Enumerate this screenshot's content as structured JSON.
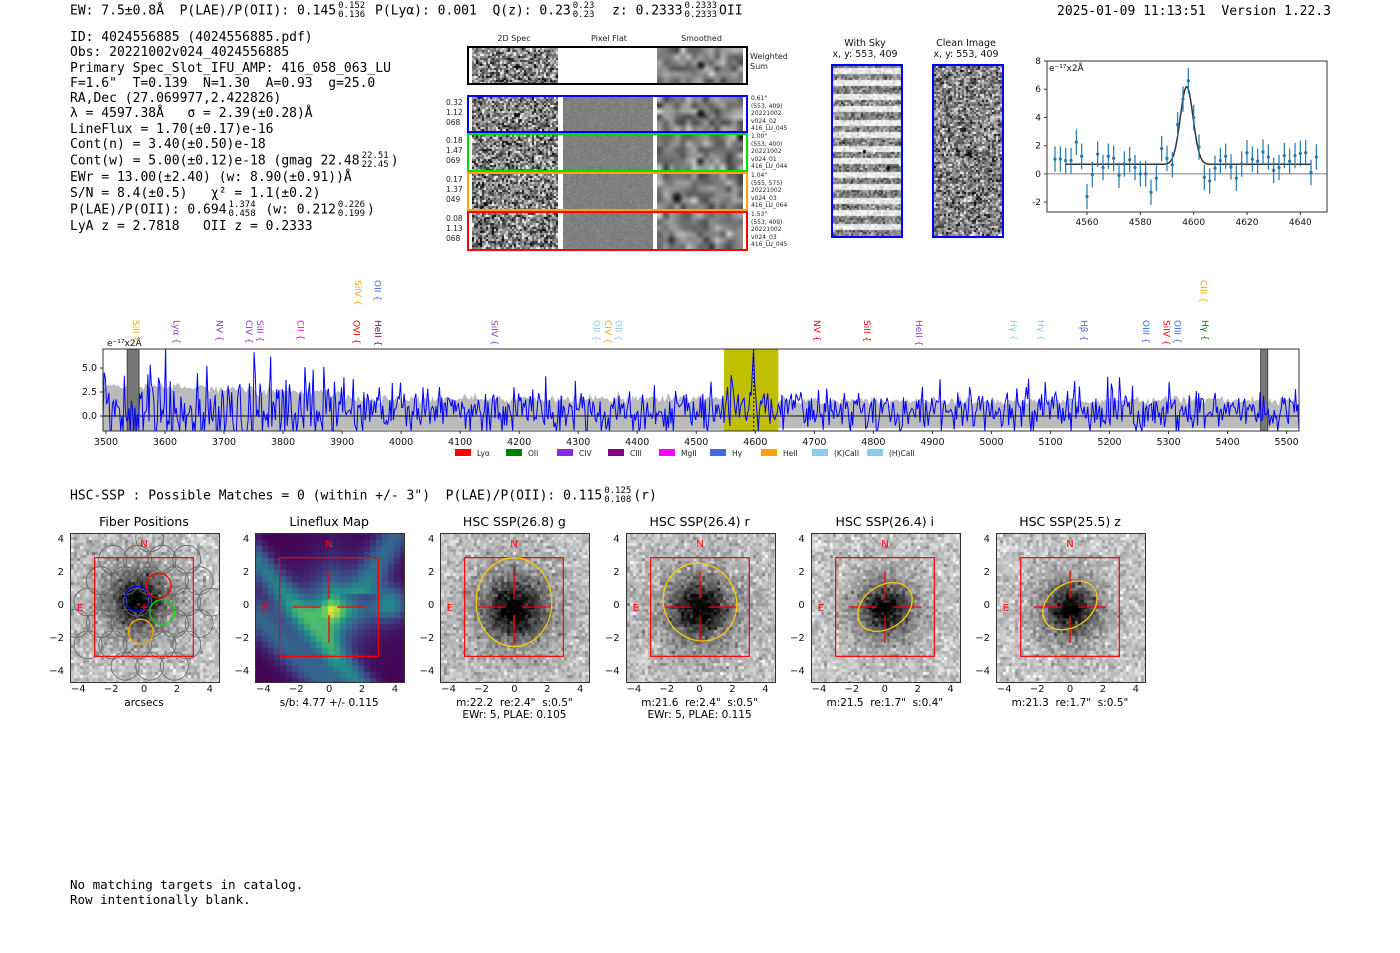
{
  "header": {
    "ew": "EW: 7.5±0.8Å",
    "plae_label": "P(LAE)/P(OII):",
    "plae": "0.145",
    "plae_hi": "0.152",
    "plae_lo": "0.136",
    "plya": "P(Lyα): 0.001",
    "qz_label": "Q(z):",
    "qz": "0.23",
    "qz_hi": "0.23",
    "qz_lo": "0.23",
    "z_label": "z:",
    "z": "0.2333",
    "z_hi": "0.2333",
    "z_lo": "0.2333",
    "z_line": "OII",
    "timestamp": "2025-01-09 11:13:51",
    "version": "Version 1.22.3"
  },
  "info": {
    "id": "ID: 4024556885 (4024556885.pdf)",
    "obs": "Obs: 20221002v024_4024556885",
    "primary": "Primary Spec_Slot_IFU_AMP: 416_058_063_LU",
    "params": "F=1.6\"  T=0.139  N=1.30  A=0.93  g=25.0",
    "radec": "RA,Dec (27.069977,2.422826)",
    "lambda": "λ = 4597.38Å   σ = 2.39(±0.28)Å",
    "lineflux": "LineFlux = 1.70(±0.17)e-16",
    "cont_n": "Cont(n) = 3.40(±0.50)e-18",
    "cont_w": "Cont(w) = 5.00(±0.12)e-18 (gmag 22.48",
    "gmag_hi": "22.51",
    "gmag_lo": "22.45",
    "cont_w_end": ")",
    "ewr": "EWr = 13.00(±2.40) (w: 8.90(±0.91))Å",
    "sn": "S/N = 8.4(±0.5)   χ² = 1.1(±0.2)",
    "plae": "P(LAE)/P(OII): 0.694",
    "plae_hi": "1.374",
    "plae_lo": "0.458",
    "plae_w": "(w: 0.212",
    "plae_w_hi": "0.226",
    "plae_w_lo": "0.199",
    "plae_w_end": ")",
    "z": "LyA z = 2.7818   OII z = 0.2333"
  },
  "spec2d": {
    "col_titles": [
      "2D Spec",
      "Pixel Flat",
      "Smoothed"
    ],
    "weighted_label": "Weighted\nSum",
    "rows": [
      {
        "color": "#0000ff",
        "left": "0.32\n1.12\n068",
        "right": "0.61\"\n(553, 409)\n20221002\nv024_02\n416_LU_045"
      },
      {
        "color": "#00dd00",
        "left": "0.18\n1.47\n069",
        "right": "1.00\"\n(553, 400)\n20221002\nv024_01\n416_LU_044"
      },
      {
        "color": "#ffa500",
        "left": "0.17\n1.37\n049",
        "right": "1.04\"\n(555, 575)\n20221002\nv024_03\n416_LU_064"
      },
      {
        "color": "#ff0000",
        "left": "0.08\n1.13\n068",
        "right": "1.53\"\n(553, 409)\n20221002\nv024_03\n416_LU_045"
      }
    ]
  },
  "sky": {
    "with_sky": "With Sky\nx, y: 553, 409",
    "clean": "Clean Image\nx, y: 553, 409"
  },
  "chart_data": [
    {
      "type": "scatter",
      "title": "",
      "ylabel": "e⁻¹⁷x2Å",
      "xlim": [
        4545,
        4650
      ],
      "ylim": [
        -2.7,
        8
      ],
      "xticks": [
        4560,
        4580,
        4600,
        4620,
        4640
      ],
      "yticks": [
        -2,
        0,
        2,
        4,
        6,
        8
      ],
      "points": {
        "x": [
          4548,
          4550,
          4552,
          4554,
          4556,
          4558,
          4560,
          4562,
          4564,
          4566,
          4568,
          4570,
          4572,
          4574,
          4576,
          4578,
          4580,
          4582,
          4584,
          4586,
          4588,
          4590,
          4592,
          4594,
          4596,
          4598,
          4600,
          4602,
          4604,
          4606,
          4608,
          4610,
          4612,
          4614,
          4616,
          4618,
          4620,
          4622,
          4624,
          4626,
          4628,
          4630,
          4632,
          4634,
          4636,
          4638,
          4640,
          4642,
          4644,
          4646
        ],
        "y": [
          1.05,
          1.05,
          0.95,
          0.95,
          2.25,
          1.25,
          -1.6,
          -0.05,
          1.4,
          0.45,
          1.25,
          1.1,
          -0.1,
          0.7,
          1.0,
          0.45,
          0.0,
          0.0,
          -1.3,
          -0.3,
          1.8,
          1.1,
          0.65,
          3.5,
          5.3,
          6.6,
          4.0,
          1.9,
          -0.25,
          -0.5,
          0.4,
          0.95,
          1.25,
          0.5,
          -0.3,
          0.7,
          1.5,
          1.05,
          0.9,
          1.55,
          1.2,
          0.25,
          0.45,
          1.3,
          0.9,
          1.3,
          1.45,
          1.5,
          0.1,
          1.2
        ],
        "err": 0.9
      },
      "fit": {
        "mu": 4597.38,
        "sigma": 2.39,
        "amplitude": 5.5,
        "continuum": 0.68,
        "range": [
          4552,
          4644
        ]
      }
    },
    {
      "type": "line",
      "ylabel": "e⁻¹⁷x2Å",
      "xlim": [
        3495,
        5521
      ],
      "ylim": [
        -1.56,
        6.98
      ],
      "xticks": [
        3500,
        3600,
        3700,
        3800,
        3900,
        4000,
        4100,
        4200,
        4300,
        4400,
        4500,
        4600,
        4700,
        4800,
        4900,
        5000,
        5100,
        5200,
        5300,
        5400,
        5500
      ],
      "yticks": [
        0.0,
        2.5,
        5.0
      ],
      "ytick_labels": [
        "0.0",
        "2.5",
        "5.0"
      ],
      "highlight": [
        4547,
        4639
      ],
      "peak": {
        "x": 4597.38,
        "y": 6.9
      },
      "masked": [
        [
          3536,
          3556
        ],
        [
          5456,
          5468
        ]
      ],
      "line_labels": [
        {
          "name": "SiII",
          "x": 3541,
          "color": "#ffa500",
          "row": "lower"
        },
        {
          "name": "Lyα",
          "x": 3609,
          "color": "#9932cc",
          "row": "lower"
        },
        {
          "name": "NV",
          "x": 3682,
          "color": "#9932cc",
          "row": "lower"
        },
        {
          "name": "CIV",
          "x": 3732,
          "color": "#9932cc",
          "row": "lower"
        },
        {
          "name": "SiII",
          "x": 3751,
          "color": "#9932cc",
          "row": "lower"
        },
        {
          "name": "CII",
          "x": 3819,
          "color": "#ff00ff",
          "row": "lower"
        },
        {
          "name": "OVI",
          "x": 3914,
          "color": "#ff0000",
          "row": "lower"
        },
        {
          "name": "HeII",
          "x": 3951,
          "color": "#800080",
          "row": "lower"
        },
        {
          "name": "SiIV",
          "x": 3917,
          "color": "#ffa500",
          "row": "upper"
        },
        {
          "name": "OII",
          "x": 3950,
          "color": "#4169e1",
          "row": "upper"
        },
        {
          "name": "SiIV",
          "x": 4148,
          "color": "#9932cc",
          "row": "lower"
        },
        {
          "name": "OII",
          "x": 4321,
          "color": "#87ceeb",
          "row": "lower"
        },
        {
          "name": "CIV",
          "x": 4340,
          "color": "#ffa500",
          "row": "lower"
        },
        {
          "name": "OII",
          "x": 4358,
          "color": "#87ceeb",
          "row": "lower"
        },
        {
          "name": "NV",
          "x": 4694,
          "color": "#ff0000",
          "row": "lower"
        },
        {
          "name": "SiII",
          "x": 4779,
          "color": "#ff0000",
          "row": "lower"
        },
        {
          "name": "HeII",
          "x": 4867,
          "color": "#9932cc",
          "row": "lower"
        },
        {
          "name": "Hγ",
          "x": 5027,
          "color": "#87ceeb",
          "row": "lower"
        },
        {
          "name": "Hγ",
          "x": 5074,
          "color": "#87ceeb",
          "row": "lower"
        },
        {
          "name": "Hβ",
          "x": 5147,
          "color": "#4169e1",
          "row": "lower"
        },
        {
          "name": "OIII",
          "x": 5252,
          "color": "#4169e1",
          "row": "lower"
        },
        {
          "name": "SiIV",
          "x": 5286,
          "color": "#ff0000",
          "row": "lower"
        },
        {
          "name": "OIII",
          "x": 5305,
          "color": "#4169e1",
          "row": "lower"
        },
        {
          "name": "Hγ",
          "x": 5352,
          "color": "#008000",
          "row": "lower"
        },
        {
          "name": "CIII",
          "x": 5349,
          "color": "#ffa500",
          "row": "upper"
        }
      ],
      "legend": [
        {
          "name": "Lyα",
          "color": "#ff0000"
        },
        {
          "name": "OII",
          "color": "#008000"
        },
        {
          "name": "CIV",
          "color": "#8a2be2"
        },
        {
          "name": "CIII",
          "color": "#800080"
        },
        {
          "name": "MgII",
          "color": "#ff00ff"
        },
        {
          "name": "Hγ",
          "color": "#4169e1"
        },
        {
          "name": "HeII",
          "color": "#ffa500"
        },
        {
          "name": "(K)CaII",
          "color": "#87ceeb"
        },
        {
          "name": "(H)CaII",
          "color": "#87ceeb"
        }
      ],
      "legend_position": "bottom"
    }
  ],
  "hsc": {
    "summary": "HSC-SSP : Possible Matches = 0 (within +/- 3\")  P(LAE)/P(OII): 0.115",
    "p_hi": "0.125",
    "p_lo": "0.108",
    "band": "(r)",
    "ticks": [
      "−4",
      "−2",
      "0",
      "2",
      "4"
    ],
    "north": "N",
    "east": "E",
    "panels": [
      {
        "title": "Fiber Positions",
        "caption": "arcsecs",
        "kind": "fiber"
      },
      {
        "title": "Lineflux Map",
        "caption": "s/b: 4.77 +/- 0.115",
        "kind": "lineflux"
      },
      {
        "title": "HSC SSP(26.8) g",
        "caption": "m:22.2  re:2.4\"  s:0.5\"\nEWr: 5, PLAE: 0.105",
        "kind": "hsc",
        "ellipse": [
          0,
          0.3,
          2.3,
          2.7,
          0
        ]
      },
      {
        "title": "HSC SSP(26.4) r",
        "caption": "m:21.6  re:2.4\"  s:0.5\"\nEWr: 5, PLAE: 0.115",
        "kind": "hsc",
        "ellipse": [
          0,
          0.3,
          2.2,
          2.4,
          -25
        ]
      },
      {
        "title": "HSC SSP(26.4) i",
        "caption": "m:21.5  re:1.7\"  s:0.4\"",
        "kind": "hsc",
        "ellipse": [
          0,
          0,
          1.8,
          1.3,
          -35
        ]
      },
      {
        "title": "HSC SSP(25.5) z",
        "caption": "m:21.3  re:1.7\"  s:0.5\"",
        "kind": "hsc",
        "ellipse": [
          0,
          0.1,
          1.8,
          1.3,
          -35
        ]
      }
    ]
  },
  "footer": {
    "line1": "No matching targets in catalog.",
    "line2": "Row intentionally blank."
  }
}
